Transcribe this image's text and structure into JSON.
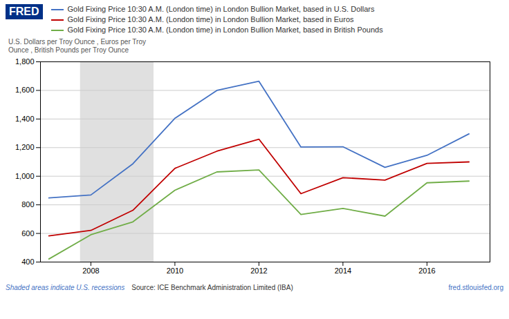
{
  "chart_data": {
    "type": "line",
    "title": "FRED",
    "title_color": "#003087",
    "ylabel": "U.S. Dollars per Troy Ounce , Euros per Troy\nOunce , British Pounds per Troy Ounce",
    "x": [
      2007,
      2008,
      2009,
      2010,
      2011,
      2012,
      2013,
      2014,
      2015,
      2016,
      2017
    ],
    "series": [
      {
        "name": "Gold Fixing Price 10:30 A.M. (London time) in London Bullion Market, based in U.S. Dollars",
        "color": "#4472C4",
        "values": [
          848,
          869,
          1087,
          1405,
          1600,
          1664,
          1204,
          1206,
          1062,
          1146,
          1296
        ]
      },
      {
        "name": "Gold Fixing Price 10:30 A.M. (London time) in London Bullion Market, based in Euros",
        "color": "#C00000",
        "values": [
          583,
          621,
          762,
          1055,
          1175,
          1259,
          878,
          990,
          973,
          1090,
          1100
        ]
      },
      {
        "name": "Gold Fixing Price 10:30 A.M. (London time) in London Bullion Market, based in British Pounds",
        "color": "#70AD47",
        "values": [
          421,
          591,
          681,
          902,
          1030,
          1044,
          732,
          775,
          721,
          954,
          966
        ]
      }
    ],
    "shaded_ranges": [
      {
        "x1": 2007.75,
        "x2": 2009.5,
        "color": "#e0e0e0"
      }
    ],
    "xlim": [
      2006.8,
      2017.5
    ],
    "xticks": [
      2008,
      2010,
      2012,
      2014,
      2016
    ],
    "ylim": [
      400,
      1800
    ],
    "yticks": [
      400,
      600,
      800,
      {
        "value": 1000,
        "label": "1,000"
      },
      {
        "value": 1200,
        "label": "1,200"
      },
      {
        "value": 1400,
        "label": "1,400"
      },
      {
        "value": 1600,
        "label": "1,600"
      },
      {
        "value": 1800,
        "label": "1,800"
      }
    ],
    "grid": "y",
    "annotations": [
      {
        "text": "Shaded areas indicate U.S. recessions",
        "color": "#4472C4",
        "style": "italic"
      },
      {
        "text": "Source: ICE Benchmark Administration Limited (IBA)",
        "color": "#333333"
      },
      {
        "text": "fred.stlouisfed.org",
        "color": "#4472C4"
      }
    ]
  }
}
